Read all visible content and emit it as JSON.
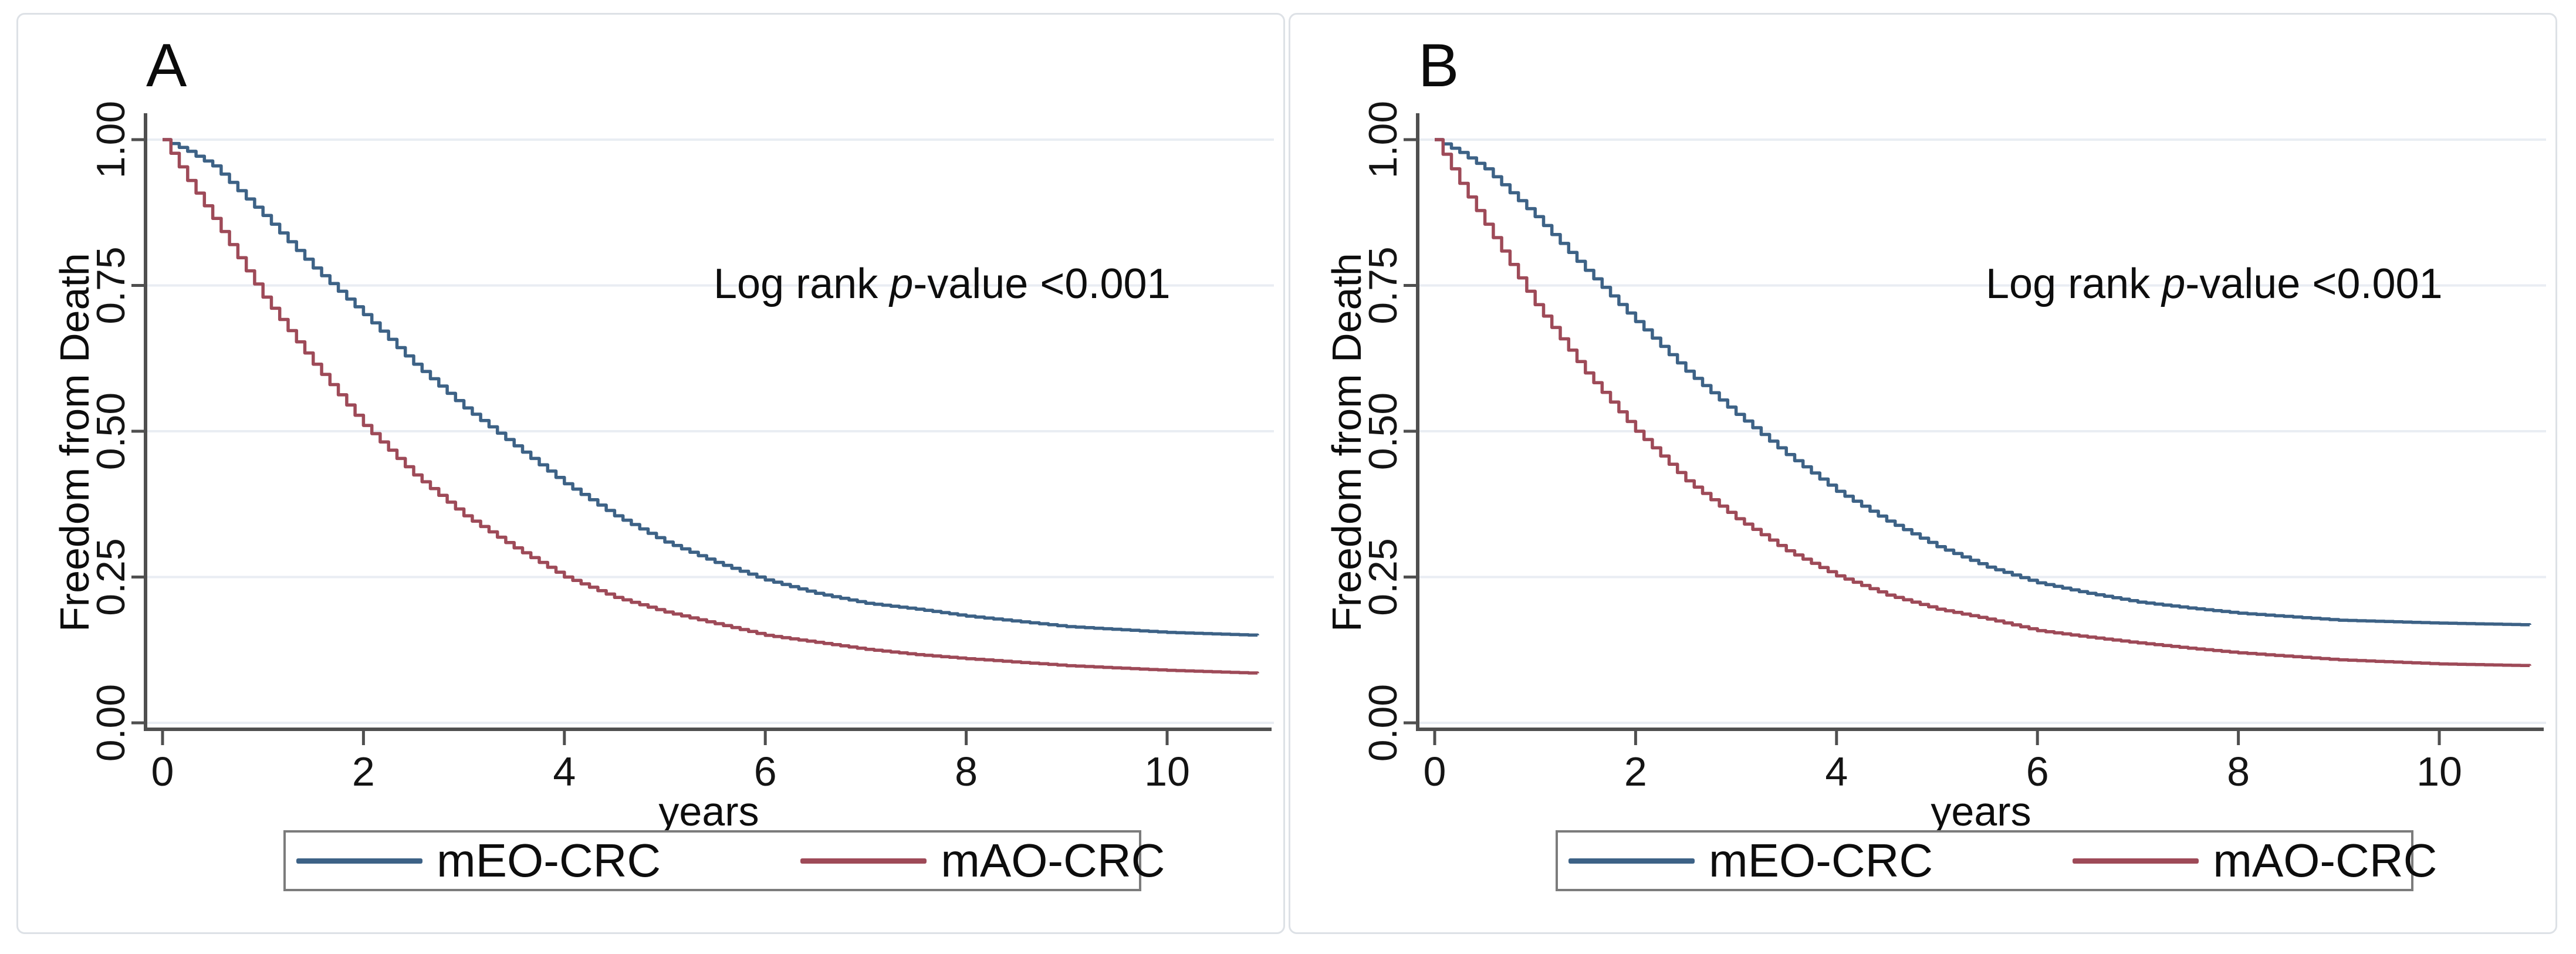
{
  "colors": {
    "axis": "#4f4f4f",
    "grid": "#e9edf3",
    "tick_label": "#141414",
    "card_border": "#dde1e6",
    "legend_border": "#7c7c7c",
    "curve_blue": "#3d6286",
    "curve_red": "#9e4a58"
  },
  "chart_data": [
    {
      "type": "line",
      "panel_label": "A",
      "xlabel": "years",
      "ylabel": "Freedom from Death",
      "annotation": {
        "prefix": "Log rank ",
        "italic": "p",
        "suffix": "-value <0.001"
      },
      "x_ticks": [
        0,
        2,
        4,
        6,
        8,
        10
      ],
      "y_ticks": [
        {
          "v": 0.0,
          "label": "0.00"
        },
        {
          "v": 0.25,
          "label": "0.25"
        },
        {
          "v": 0.5,
          "label": "0.50"
        },
        {
          "v": 0.75,
          "label": "0.75"
        },
        {
          "v": 1.0,
          "label": "1.00"
        }
      ],
      "xlim": [
        0,
        11.1
      ],
      "ylim": [
        0,
        1
      ],
      "grid": true,
      "legend_position": "bottom",
      "curve_style": "kaplan-meier-step",
      "series": [
        {
          "name": "mEO-CRC",
          "color": "#3d6286",
          "points": [
            [
              0,
              1.0
            ],
            [
              0.25,
              0.98
            ],
            [
              0.5,
              0.955
            ],
            [
              1,
              0.87
            ],
            [
              1.5,
              0.78
            ],
            [
              2,
              0.7
            ],
            [
              2.5,
              0.615
            ],
            [
              3,
              0.54
            ],
            [
              3.5,
              0.475
            ],
            [
              4,
              0.41
            ],
            [
              4.5,
              0.355
            ],
            [
              5,
              0.31
            ],
            [
              5.5,
              0.275
            ],
            [
              6,
              0.245
            ],
            [
              6.5,
              0.222
            ],
            [
              7,
              0.205
            ],
            [
              7.5,
              0.195
            ],
            [
              8,
              0.183
            ],
            [
              9,
              0.165
            ],
            [
              10,
              0.155
            ],
            [
              10.9,
              0.15
            ]
          ]
        },
        {
          "name": "mAO-CRC",
          "color": "#9e4a58",
          "points": [
            [
              0,
              1.0
            ],
            [
              0.25,
              0.93
            ],
            [
              0.5,
              0.865
            ],
            [
              1,
              0.73
            ],
            [
              1.5,
              0.615
            ],
            [
              2,
              0.51
            ],
            [
              2.5,
              0.425
            ],
            [
              3,
              0.355
            ],
            [
              3.5,
              0.3
            ],
            [
              4,
              0.25
            ],
            [
              4.5,
              0.215
            ],
            [
              5,
              0.19
            ],
            [
              5.5,
              0.17
            ],
            [
              6,
              0.15
            ],
            [
              6.5,
              0.138
            ],
            [
              7,
              0.126
            ],
            [
              7.5,
              0.117
            ],
            [
              8,
              0.11
            ],
            [
              9,
              0.098
            ],
            [
              10,
              0.09
            ],
            [
              10.9,
              0.085
            ]
          ]
        }
      ]
    },
    {
      "type": "line",
      "panel_label": "B",
      "xlabel": "years",
      "ylabel": "Freedom from Death",
      "annotation": {
        "prefix": "Log rank ",
        "italic": "p",
        "suffix": "-value <0.001"
      },
      "x_ticks": [
        0,
        2,
        4,
        6,
        8,
        10
      ],
      "y_ticks": [
        {
          "v": 0.0,
          "label": "0.00"
        },
        {
          "v": 0.25,
          "label": "0.25"
        },
        {
          "v": 0.5,
          "label": "0.50"
        },
        {
          "v": 0.75,
          "label": "0.75"
        },
        {
          "v": 1.0,
          "label": "1.00"
        }
      ],
      "xlim": [
        0,
        11.1
      ],
      "ylim": [
        0,
        1
      ],
      "grid": true,
      "legend_position": "bottom",
      "curve_style": "kaplan-meier-step",
      "series": [
        {
          "name": "mEO-CRC",
          "color": "#3d6286",
          "points": [
            [
              0,
              1.0
            ],
            [
              0.25,
              0.978
            ],
            [
              0.5,
              0.95
            ],
            [
              1,
              0.868
            ],
            [
              1.5,
              0.776
            ],
            [
              2,
              0.688
            ],
            [
              2.5,
              0.603
            ],
            [
              3,
              0.529
            ],
            [
              3.5,
              0.46
            ],
            [
              4,
              0.397
            ],
            [
              4.5,
              0.346
            ],
            [
              5,
              0.302
            ],
            [
              5.5,
              0.267
            ],
            [
              6,
              0.24
            ],
            [
              6.5,
              0.222
            ],
            [
              7,
              0.207
            ],
            [
              7.5,
              0.197
            ],
            [
              8,
              0.188
            ],
            [
              9,
              0.176
            ],
            [
              10,
              0.171
            ],
            [
              10.9,
              0.168
            ]
          ]
        },
        {
          "name": "mAO-CRC",
          "color": "#9e4a58",
          "points": [
            [
              0,
              1.0
            ],
            [
              0.25,
              0.925
            ],
            [
              0.5,
              0.855
            ],
            [
              1,
              0.717
            ],
            [
              1.5,
              0.6
            ],
            [
              2,
              0.5
            ],
            [
              2.5,
              0.415
            ],
            [
              3,
              0.35
            ],
            [
              3.5,
              0.295
            ],
            [
              4,
              0.252
            ],
            [
              4.5,
              0.219
            ],
            [
              5,
              0.195
            ],
            [
              5.5,
              0.178
            ],
            [
              6,
              0.158
            ],
            [
              6.5,
              0.147
            ],
            [
              7,
              0.137
            ],
            [
              7.5,
              0.128
            ],
            [
              8,
              0.12
            ],
            [
              9,
              0.108
            ],
            [
              10,
              0.101
            ],
            [
              10.9,
              0.098
            ]
          ]
        }
      ]
    }
  ]
}
